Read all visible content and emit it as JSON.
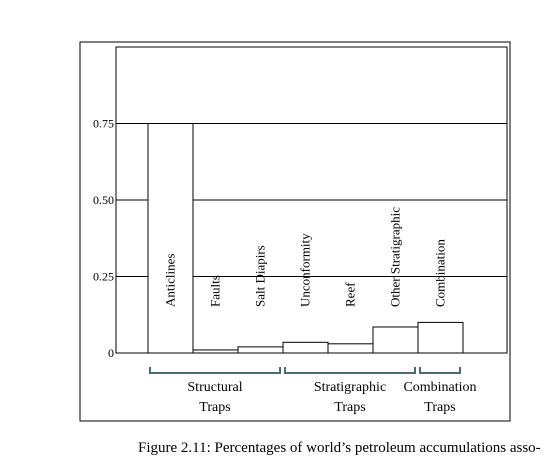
{
  "chart_data": {
    "type": "bar",
    "categories": [
      "Anticlines",
      "Faults",
      "Salt Diapirs",
      "Unconformity",
      "Reef",
      "Other Stratigraphic",
      "Combination"
    ],
    "values": [
      0.75,
      0.01,
      0.02,
      0.035,
      0.03,
      0.085,
      0.1
    ],
    "ylim": [
      0,
      1.0
    ],
    "yticks": [
      "0",
      "0.25",
      "0.50",
      "0.75"
    ],
    "ytick_values": [
      0,
      0.25,
      0.5,
      0.75
    ],
    "grid": true,
    "groups": [
      {
        "name_line1": "Structural",
        "name_line2": "Traps",
        "members": [
          "Anticlines",
          "Faults",
          "Salt Diapirs"
        ]
      },
      {
        "name_line1": "Stratigraphic",
        "name_line2": "Traps",
        "members": [
          "Unconformity",
          "Reef",
          "Other Stratigraphic"
        ]
      },
      {
        "name_line1": "Combination",
        "name_line2": "Traps",
        "members": [
          "Combination"
        ]
      }
    ],
    "bar_color": "#ffffff",
    "line_color": "#000000",
    "bracket_color": "#4a6f6a"
  },
  "caption": "Figure 2.11: Percentages of world’s petroleum accumulations asso-"
}
